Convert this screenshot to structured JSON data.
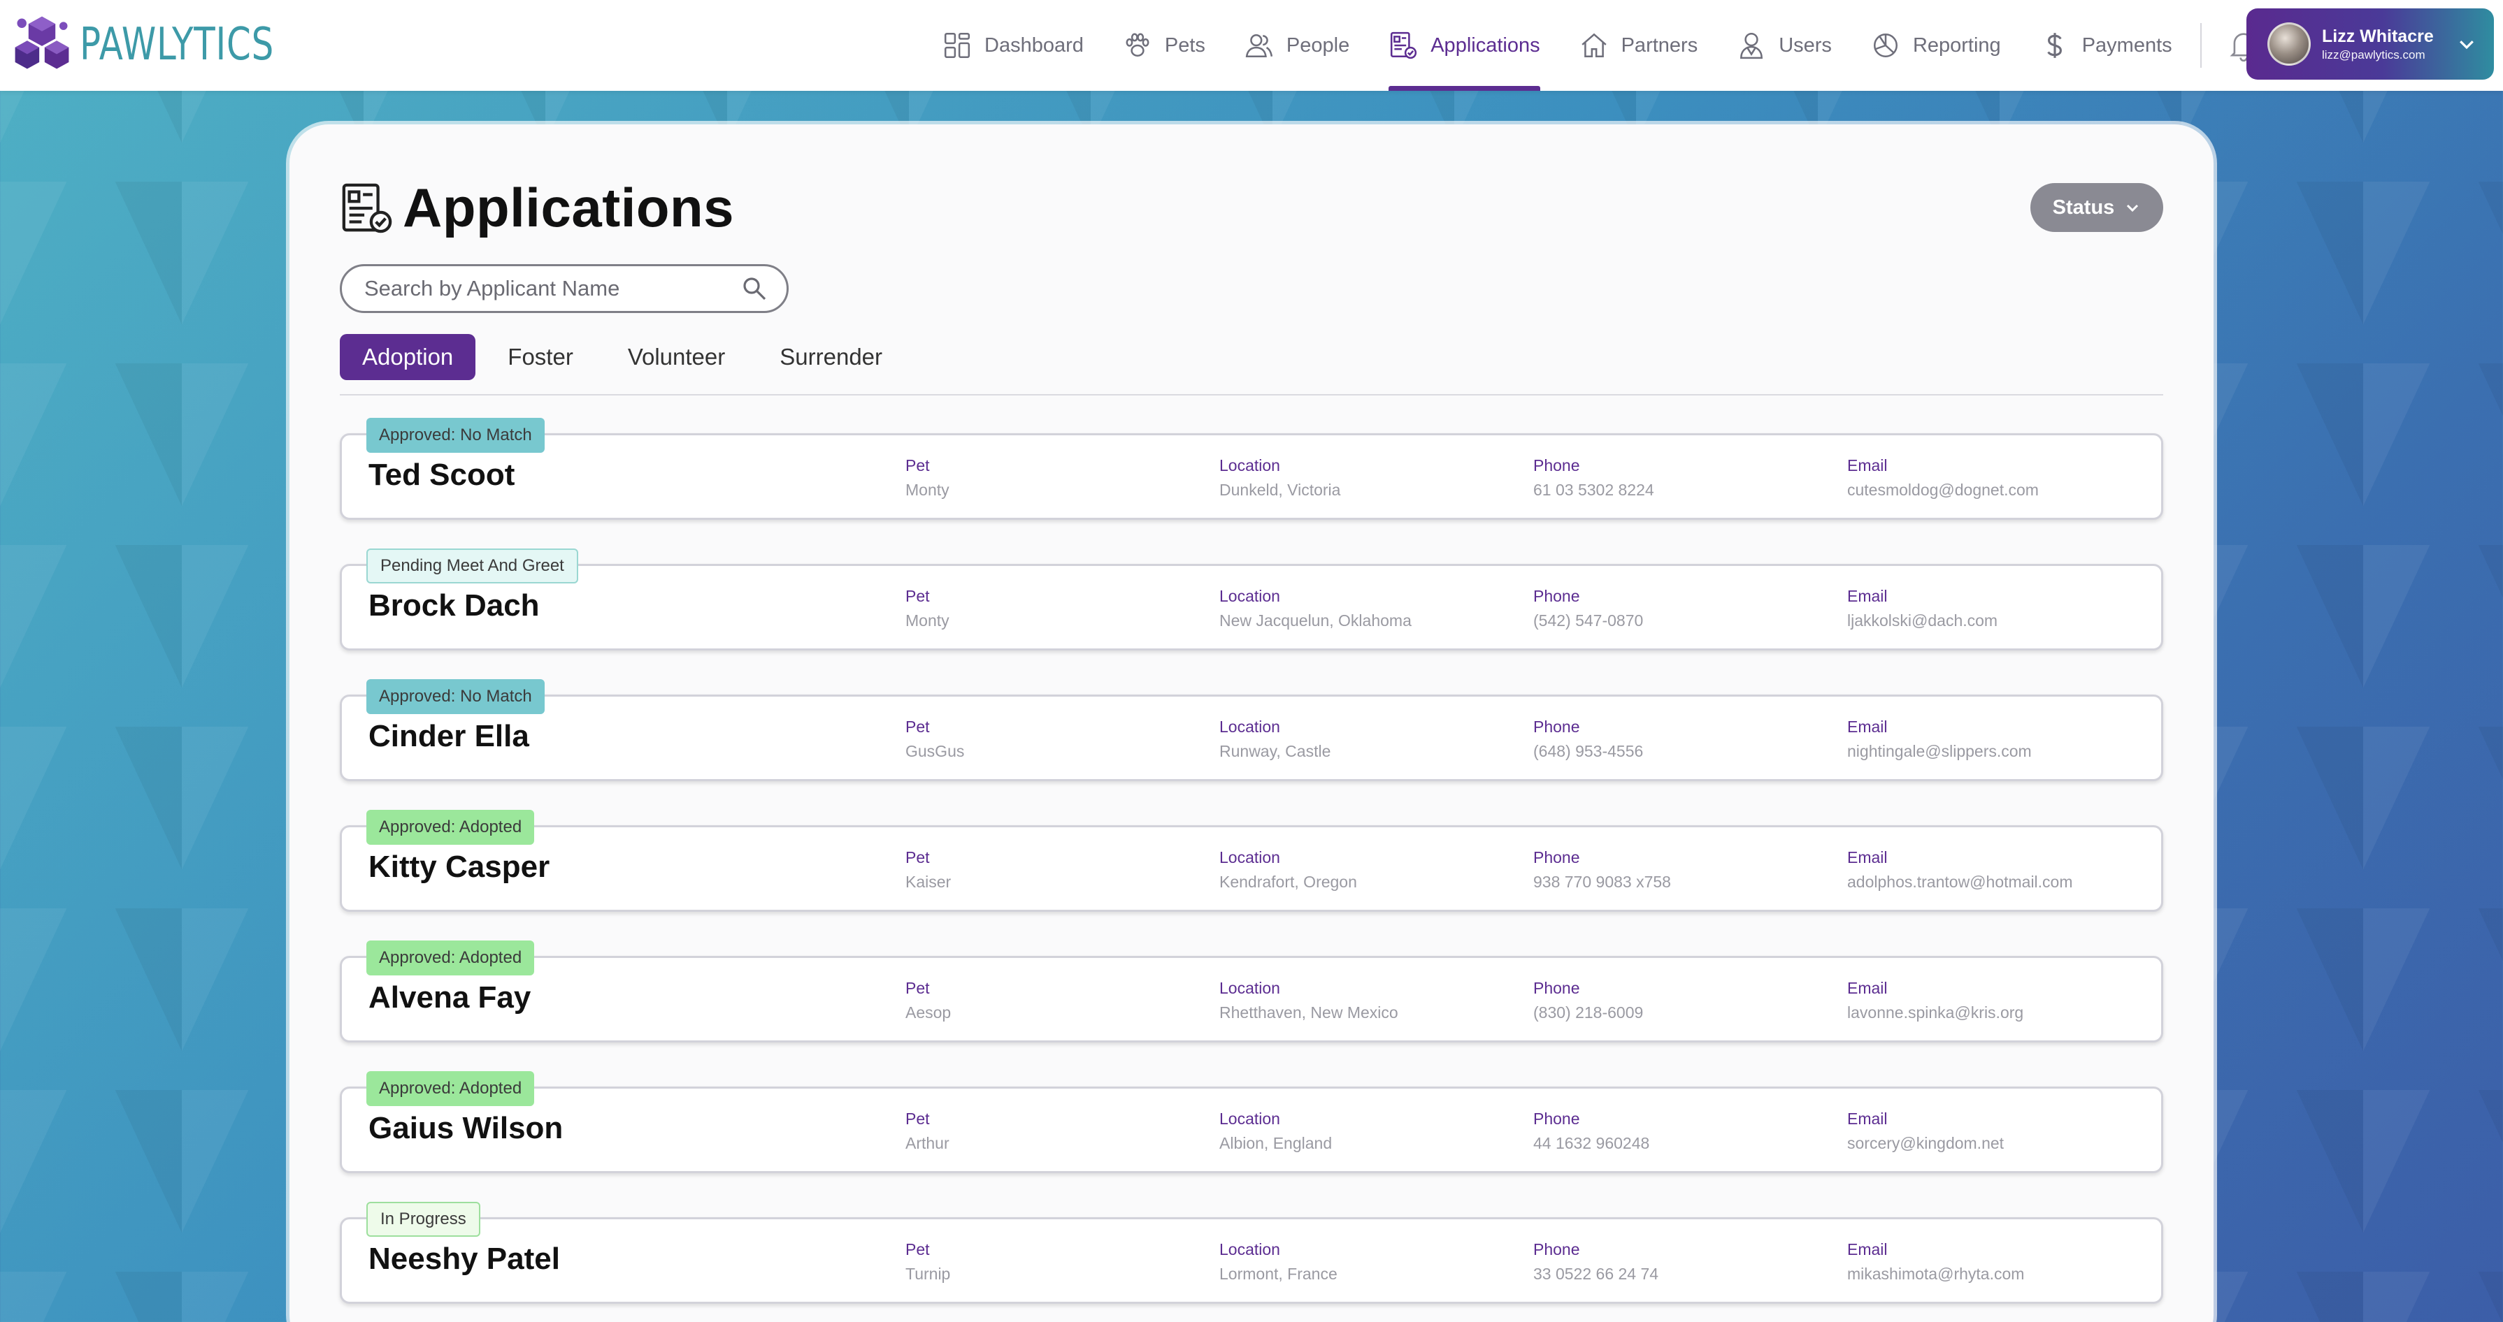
{
  "brand": {
    "name": "PAWLYTICS",
    "colors": {
      "primary": "#5c2d91",
      "teal": "#3d9aa8"
    }
  },
  "nav": {
    "items": [
      {
        "label": "Dashboard",
        "icon": "dashboard-grid-icon"
      },
      {
        "label": "Pets",
        "icon": "paw-icon"
      },
      {
        "label": "People",
        "icon": "people-icon"
      },
      {
        "label": "Applications",
        "icon": "application-doc-icon",
        "active": true
      },
      {
        "label": "Partners",
        "icon": "house-icon"
      },
      {
        "label": "Users",
        "icon": "user-icon"
      },
      {
        "label": "Reporting",
        "icon": "pie-chart-icon"
      },
      {
        "label": "Payments",
        "icon": "dollar-icon"
      }
    ],
    "notifications_icon": "bell-icon"
  },
  "user": {
    "name": "Lizz Whitacre",
    "email": "lizz@pawlytics.com"
  },
  "page": {
    "title": "Applications",
    "status_button": "Status",
    "search": {
      "placeholder": "Search by Applicant Name",
      "value": ""
    },
    "tabs": [
      {
        "label": "Adoption",
        "active": true
      },
      {
        "label": "Foster"
      },
      {
        "label": "Volunteer"
      },
      {
        "label": "Surrender"
      }
    ],
    "field_labels": {
      "pet": "Pet",
      "location": "Location",
      "phone": "Phone",
      "email": "Email"
    }
  },
  "applications": [
    {
      "status": "Approved: No Match",
      "name": "Ted Scoot",
      "pet": "Monty",
      "location": "Dunkeld, Victoria",
      "phone": "61 03 5302 8224",
      "email": "cutesmoldog@dognet.com"
    },
    {
      "status": "Pending Meet And Greet",
      "name": "Brock Dach",
      "pet": "Monty",
      "location": "New Jacquelun, Oklahoma",
      "phone": "(542) 547-0870",
      "email": "ljakkolski@dach.com"
    },
    {
      "status": "Approved: No Match",
      "name": "Cinder Ella",
      "pet": "GusGus",
      "location": "Runway, Castle",
      "phone": "(648) 953-4556",
      "email": "nightingale@slippers.com"
    },
    {
      "status": "Approved: Adopted",
      "name": "Kitty Casper",
      "pet": "Kaiser",
      "location": "Kendrafort, Oregon",
      "phone": "938 770 9083 x758",
      "email": "adolphos.trantow@hotmail.com"
    },
    {
      "status": "Approved: Adopted",
      "name": "Alvena Fay",
      "pet": "Aesop",
      "location": "Rhetthaven, New Mexico",
      "phone": "(830) 218-6009",
      "email": "lavonne.spinka@kris.org"
    },
    {
      "status": "Approved: Adopted",
      "name": "Gaius Wilson",
      "pet": "Arthur",
      "location": "Albion, England",
      "phone": "44 1632 960248",
      "email": "sorcery@kingdom.net"
    },
    {
      "status": "In Progress",
      "name": "Neeshy Patel",
      "pet": "Turnip",
      "location": "Lormont, France",
      "phone": "33 0522 66 24 74",
      "email": "mikashimota@rhyta.com"
    }
  ]
}
